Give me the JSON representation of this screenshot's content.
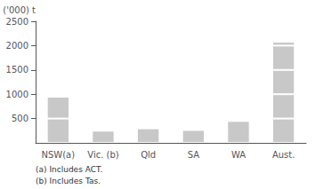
{
  "chart_data": {
    "type": "bar",
    "ylabel": "('000) t",
    "categories": [
      "NSW(a)",
      "Vic. (b)",
      "Qld",
      "SA",
      "WA",
      "Aust."
    ],
    "series": [
      {
        "values": [
          500,
          250,
          300,
          265,
          450,
          500
        ]
      },
      {
        "values": [
          450,
          0,
          0,
          0,
          0,
          500
        ]
      },
      {
        "values": [
          0,
          0,
          0,
          0,
          0,
          500
        ]
      },
      {
        "values": [
          0,
          0,
          0,
          0,
          0,
          500
        ]
      },
      {
        "values": [
          0,
          0,
          0,
          0,
          0,
          80
        ]
      }
    ],
    "color": "#c8c8c8",
    "stacked": true,
    "ylim": [
      0,
      2500
    ],
    "yticks": [
      500,
      1000,
      1500,
      2000,
      2500
    ],
    "grid": false,
    "annotations": [
      "(a) Includes ACT.",
      "(b) Includes Tas."
    ]
  }
}
